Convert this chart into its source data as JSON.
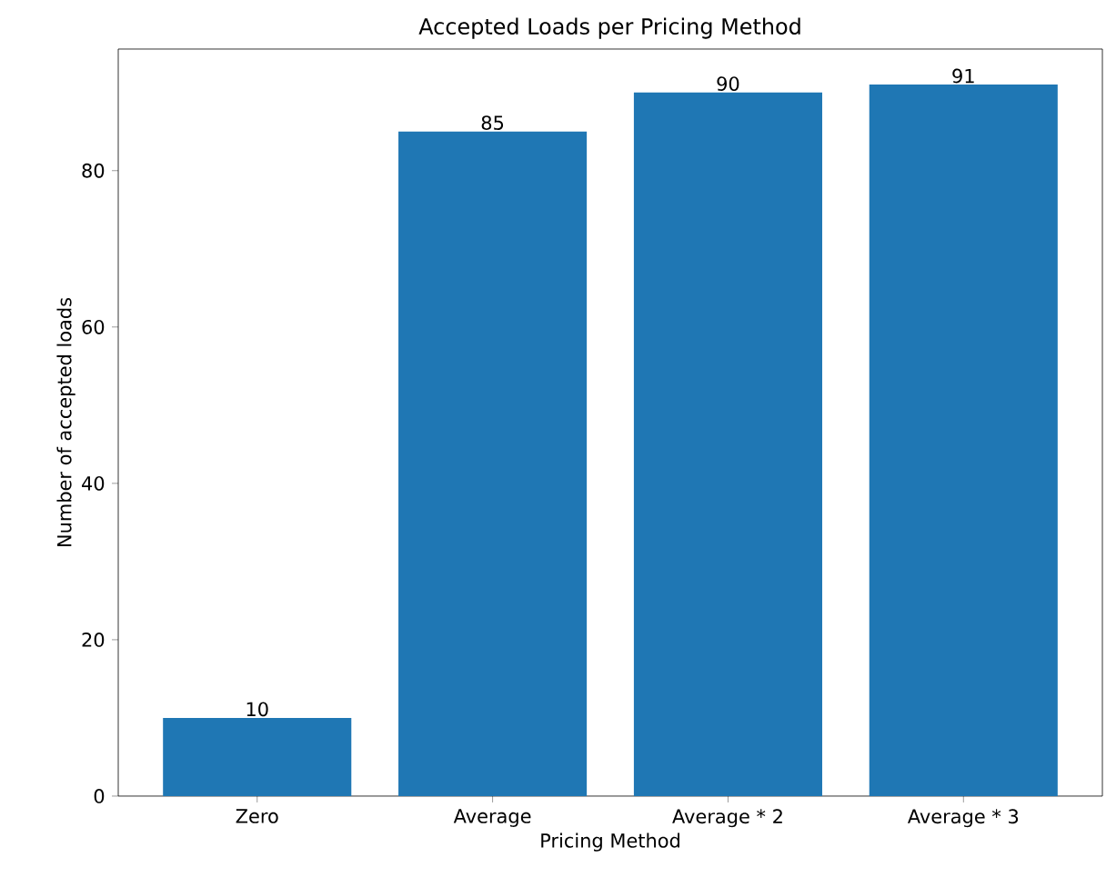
{
  "chart_data": {
    "type": "bar",
    "title": "Accepted Loads per Pricing Method",
    "xlabel": "Pricing Method",
    "ylabel": "Number of accepted loads",
    "categories": [
      "Zero",
      "Average",
      "Average * 2",
      "Average * 3"
    ],
    "values": [
      10,
      85,
      90,
      91
    ],
    "color": "#1f77b4",
    "data_labels": true,
    "ylim": [
      0,
      95.55
    ],
    "yticks": [
      0,
      20,
      40,
      60,
      80
    ]
  }
}
